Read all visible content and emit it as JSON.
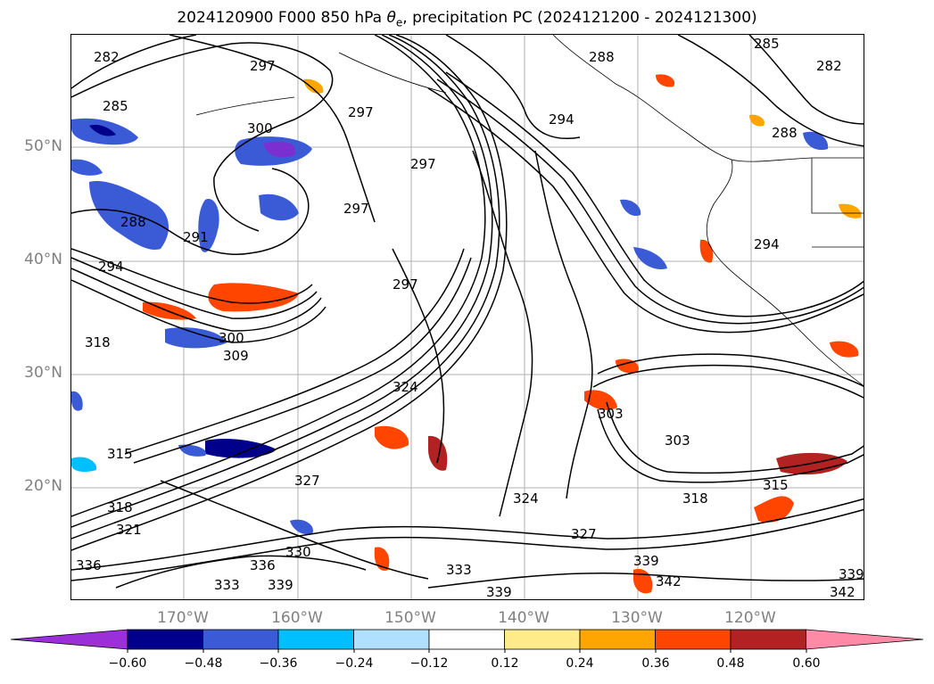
{
  "title_prefix": "2024120900 F000 850 hPa ",
  "title_symbol": "θ",
  "title_sub": "e",
  "title_suffix": ", precipitation PC (2024121200 - 2024121300)",
  "lat_labels": [
    "50°N",
    "40°N",
    "30°N",
    "20°N"
  ],
  "lon_labels": [
    "170°W",
    "160°W",
    "150°W",
    "140°W",
    "130°W",
    "120°W"
  ],
  "contour_labels": [
    "282",
    "285",
    "297",
    "300",
    "297",
    "294",
    "288",
    "285",
    "282",
    "288",
    "288",
    "294",
    "294",
    "291",
    "297",
    "297",
    "297",
    "300",
    "318",
    "318",
    "315",
    "309",
    "324",
    "303",
    "303",
    "318",
    "315",
    "324",
    "327",
    "336",
    "339",
    "342",
    "339",
    "342",
    "339",
    "333",
    "336",
    "330",
    "333",
    "339",
    "321",
    "327"
  ],
  "colorbar": {
    "ticks": [
      "−0.60",
      "−0.48",
      "−0.36",
      "−0.24",
      "−0.12",
      "0.12",
      "0.24",
      "0.36",
      "0.48",
      "0.60"
    ],
    "colors": [
      "#9b30d9",
      "#00008b",
      "#3b5bd6",
      "#00bfff",
      "#b0e0ff",
      "#ffffff",
      "#ffeb8a",
      "#ffa500",
      "#ff4500",
      "#b22222",
      "#ff8aa8"
    ]
  }
}
